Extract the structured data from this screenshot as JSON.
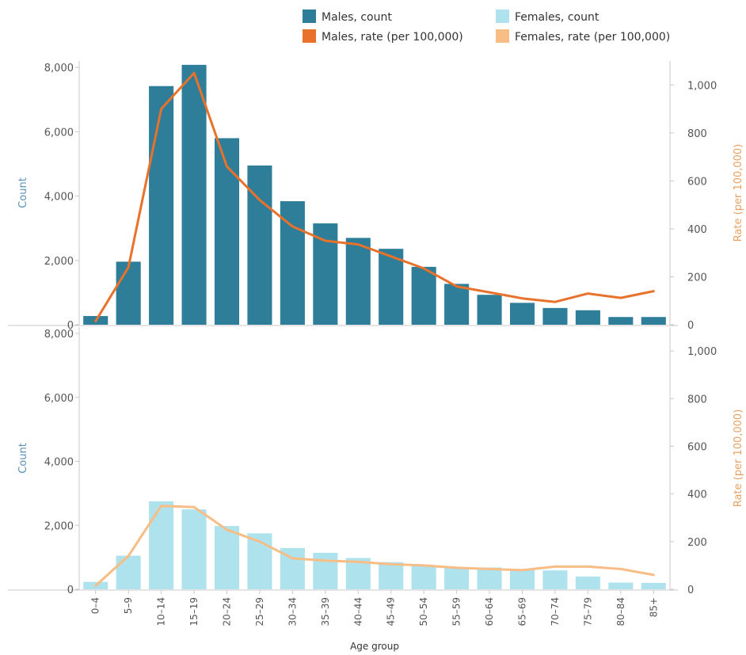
{
  "legend": [
    {
      "key": "males_count",
      "label": "Males, count",
      "color": "#2e7d99",
      "kind": "bar"
    },
    {
      "key": "females_count",
      "label": "Females, count",
      "color": "#aee3ee",
      "kind": "bar"
    },
    {
      "key": "males_rate",
      "label": "Males, rate (per 100,000)",
      "color": "#e8722c",
      "kind": "line"
    },
    {
      "key": "females_rate",
      "label": "Females, rate (per 100,000)",
      "color": "#f7bd85",
      "kind": "line"
    }
  ],
  "chart_data": [
    {
      "type": "bar",
      "panel": "males",
      "categories": [
        "0–4",
        "5–9",
        "10–14",
        "15–19",
        "20–24",
        "25–29",
        "30–34",
        "35–39",
        "40–44",
        "45–49",
        "50–54",
        "55–59",
        "60–64",
        "65–69",
        "70–74",
        "75–79",
        "80–84",
        "85+"
      ],
      "series": [
        {
          "name": "Males, count",
          "type": "bar",
          "axis": "left",
          "color": "#2e7d99",
          "values": [
            270,
            1960,
            7420,
            8080,
            5800,
            4950,
            3840,
            3150,
            2700,
            2360,
            1800,
            1270,
            930,
            680,
            520,
            450,
            240,
            240
          ]
        },
        {
          "name": "Males, rate (per 100,000)",
          "type": "line",
          "axis": "right",
          "color": "#e8722c",
          "values": [
            15,
            240,
            900,
            1050,
            660,
            520,
            410,
            350,
            335,
            285,
            235,
            160,
            135,
            110,
            95,
            130,
            112,
            140
          ]
        }
      ],
      "ylabel_left": "Count",
      "ylabel_right": "Rate (per 100,000)",
      "ylim_left": [
        0,
        8200
      ],
      "yticks_left": [
        0,
        2000,
        4000,
        6000,
        8000
      ],
      "ytick_labels_left": [
        "0",
        "2,000",
        "4,000",
        "6,000",
        "8,000"
      ],
      "ylim_right": [
        0,
        1100
      ],
      "yticks_right": [
        0,
        200,
        400,
        600,
        800,
        1000
      ],
      "ytick_labels_right": [
        "0",
        "200",
        "400",
        "600",
        "800",
        "1,000"
      ]
    },
    {
      "type": "bar",
      "panel": "females",
      "categories": [
        "0–4",
        "5–9",
        "10–14",
        "15–19",
        "20–24",
        "25–29",
        "30–34",
        "35–39",
        "40–44",
        "45–49",
        "50–54",
        "55–59",
        "60–64",
        "65–69",
        "70–74",
        "75–79",
        "80–84",
        "85+"
      ],
      "series": [
        {
          "name": "Females, count",
          "type": "bar",
          "axis": "left",
          "color": "#aee3ee",
          "values": [
            230,
            1050,
            2750,
            2500,
            1980,
            1750,
            1290,
            1140,
            980,
            850,
            760,
            680,
            680,
            620,
            590,
            400,
            210,
            200
          ]
        },
        {
          "name": "Females, rate (per 100,000)",
          "type": "line",
          "axis": "right",
          "color": "#f7bd85",
          "values": [
            15,
            140,
            350,
            345,
            250,
            200,
            130,
            120,
            115,
            105,
            100,
            90,
            85,
            80,
            95,
            95,
            85,
            60
          ]
        }
      ],
      "ylabel_left": "Count",
      "ylabel_right": "Rate (per 100,000)",
      "ylim_left": [
        0,
        8200
      ],
      "yticks_left": [
        0,
        2000,
        4000,
        6000,
        8000
      ],
      "ytick_labels_left": [
        "0",
        "2,000",
        "4,000",
        "6,000",
        "8,000"
      ],
      "ylim_right": [
        0,
        1100
      ],
      "yticks_right": [
        0,
        200,
        400,
        600,
        800,
        1000
      ],
      "ytick_labels_right": [
        "0",
        "200",
        "400",
        "600",
        "800",
        "1,000"
      ],
      "xlabel": "Age group"
    }
  ]
}
